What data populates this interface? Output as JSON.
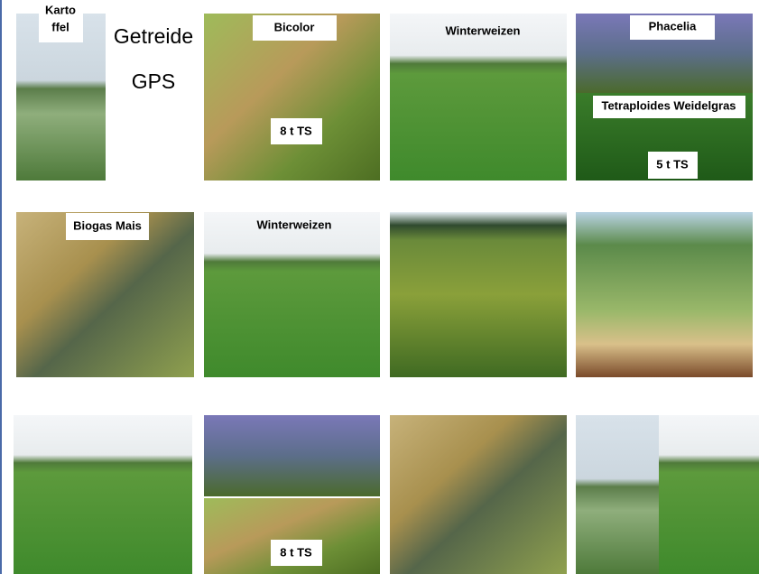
{
  "header": {
    "title": "Getreide",
    "subtitle": "GPS"
  },
  "labels": {
    "kartoffel": [
      "Karto",
      "ffel"
    ],
    "bicolor": "Bicolor",
    "bicolor_yield": "8 t TS",
    "winterweizen_1": "Winterweizen",
    "phacelia": "Phacelia",
    "weidelgras": "Tetraploides Weidelgras",
    "weidelgras_yield": "5 t TS",
    "biogas_mais": "Biogas Mais",
    "winterweizen_2": "Winterweizen",
    "bicolor_yield_2": "8 t TS"
  }
}
